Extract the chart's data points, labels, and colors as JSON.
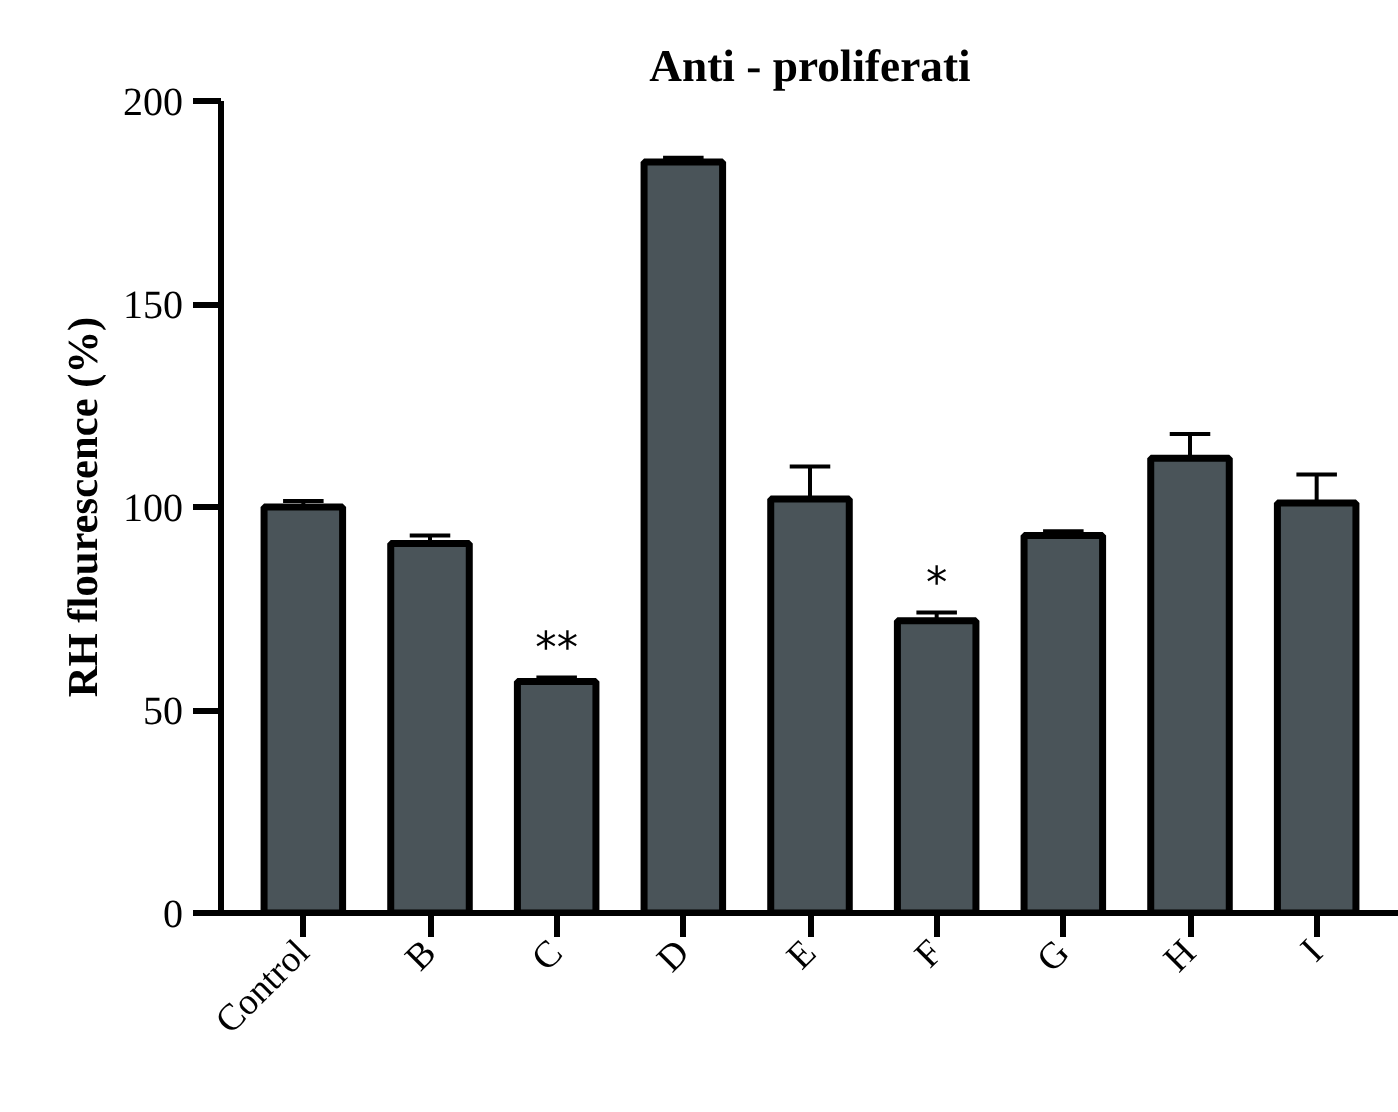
{
  "chart_data": {
    "type": "bar",
    "title": "Anti - proliferati",
    "ylabel": "RH flourescence (%)",
    "categories": [
      "Control",
      "B",
      "C",
      "D",
      "E",
      "F",
      "G",
      "H",
      "I"
    ],
    "values": [
      100,
      91,
      57,
      185,
      102,
      72,
      93,
      112,
      101
    ],
    "errors": [
      [
        100,
        101.5
      ],
      [
        91,
        93
      ],
      [
        57,
        58
      ],
      [
        185,
        186
      ],
      [
        102,
        110
      ],
      [
        72,
        74
      ],
      [
        93,
        94
      ],
      [
        112,
        118
      ],
      [
        101,
        108
      ]
    ],
    "color": "#4a5459",
    "ylim": [
      0,
      200
    ],
    "yticks": [
      0,
      50,
      100,
      150,
      200
    ],
    "grid": false,
    "annotations": [
      {
        "text": "**",
        "x": "C",
        "y": 58
      },
      {
        "text": "*",
        "x": "F",
        "y": 74
      }
    ]
  }
}
